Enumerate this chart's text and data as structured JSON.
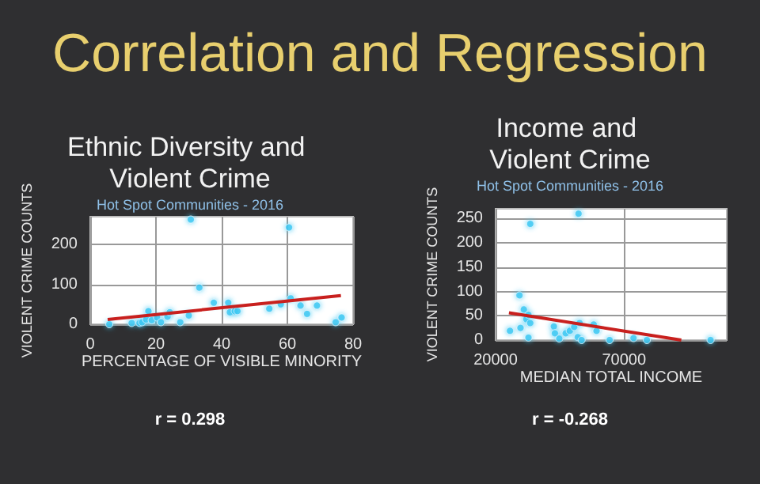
{
  "chart_data": [
    {
      "type": "scatter",
      "title": "Ethnic Diversity and Violent Crime",
      "subtitle": "Hot Spot Communities - 2016",
      "xlabel": "PERCENTAGE OF VISIBLE MINORITY",
      "ylabel": "VIOLENT CRIME COUNTS",
      "annotations": [
        "Correlation and Regression",
        "r = 0.298"
      ],
      "xlim": [
        0,
        80
      ],
      "xticks": [
        0,
        20,
        40,
        60,
        80
      ],
      "ylim": [
        0,
        270
      ],
      "yticks": [
        0,
        100,
        200
      ],
      "grid": true,
      "marker": "circle",
      "series": [
        {
          "color": "#3ec8f2",
          "x": [
            5.8,
            12.6,
            15,
            15.8,
            17,
            17.7,
            18.7,
            20.3,
            21.5,
            23.5,
            24.2,
            27.4,
            30,
            30.6,
            33.2,
            37.6,
            42,
            42.5,
            44,
            44.8,
            54.5,
            58,
            60.5,
            61,
            64,
            66,
            69,
            74.7,
            76.5
          ],
          "values": [
            0,
            3,
            3,
            5,
            12,
            33,
            10,
            17,
            5,
            19,
            30,
            5,
            22,
            263,
            92,
            54,
            54,
            30,
            33,
            33,
            39,
            50,
            243,
            65,
            47,
            26,
            47,
            5,
            17
          ]
        },
        {
          "type": "line",
          "color": "#c8201e",
          "marker": "none",
          "x": [
            5.3,
            76.3
          ],
          "values": [
            12,
            72
          ]
        }
      ]
    },
    {
      "type": "scatter",
      "title": "Income and Violent Crime",
      "subtitle": "Hot Spot Communities - 2016",
      "xlabel": "MEDIAN TOTAL INCOME",
      "ylabel": "VIOLENT CRIME COUNTS",
      "annotations": [
        "r = -0.268"
      ],
      "xlim": [
        20000,
        110000
      ],
      "xticks": [
        20000,
        70000
      ],
      "ylim": [
        0,
        270
      ],
      "yticks": [
        0,
        50,
        100,
        150,
        200,
        250
      ],
      "grid": true,
      "marker": "circle",
      "series": [
        {
          "color": "#3ec8f2",
          "x": [
            25600,
            29300,
            29700,
            31000,
            32000,
            32800,
            33500,
            32800,
            33500,
            42700,
            43100,
            44800,
            47300,
            48900,
            50600,
            52000,
            52300,
            52700,
            53500,
            58200,
            59300,
            64400,
            73700,
            78900,
            103700
          ],
          "values": [
            19,
            92,
            25,
            63,
            43,
            52,
            35,
            5,
            239,
            28,
            14,
            3,
            14,
            19,
            27,
            6,
            260,
            35,
            0,
            32,
            19,
            0,
            4,
            0,
            0
          ]
        },
        {
          "type": "line",
          "color": "#c8201e",
          "marker": "none",
          "x": [
            25200,
            92300
          ],
          "values": [
            56,
            0
          ]
        }
      ]
    }
  ]
}
